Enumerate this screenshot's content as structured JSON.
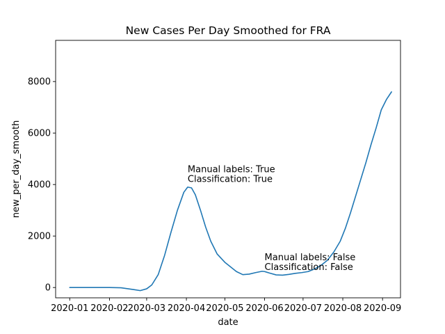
{
  "chart_data": {
    "type": "line",
    "title": "New Cases Per Day Smoothed for FRA",
    "xlabel": "date",
    "ylabel": "new_per_day_smooth",
    "xlim": [
      "2019-12-21",
      "2020-09-15"
    ],
    "ylim": [
      -400,
      9600
    ],
    "grid": false,
    "x_ticks": [
      "2020-01-01",
      "2020-02-01",
      "2020-03-01",
      "2020-04-01",
      "2020-05-01",
      "2020-06-01",
      "2020-07-01",
      "2020-08-01",
      "2020-09-01"
    ],
    "x_tick_labels": [
      "2020-01",
      "2020-02",
      "2020-03",
      "2020-04",
      "2020-05",
      "2020-06",
      "2020-07",
      "2020-08",
      "2020-09"
    ],
    "y_ticks": [
      0,
      2000,
      4000,
      6000,
      8000
    ],
    "y_tick_labels": [
      "0",
      "2000",
      "4000",
      "6000",
      "8000"
    ],
    "series": [
      {
        "color": "#1f77b4",
        "x": [
          "2020-01-01",
          "2020-01-15",
          "2020-02-01",
          "2020-02-10",
          "2020-02-20",
          "2020-02-25",
          "2020-03-01",
          "2020-03-05",
          "2020-03-10",
          "2020-03-15",
          "2020-03-20",
          "2020-03-25",
          "2020-03-30",
          "2020-04-02",
          "2020-04-05",
          "2020-04-08",
          "2020-04-12",
          "2020-04-16",
          "2020-04-20",
          "2020-04-25",
          "2020-05-01",
          "2020-05-05",
          "2020-05-10",
          "2020-05-15",
          "2020-05-20",
          "2020-05-25",
          "2020-05-30",
          "2020-06-01",
          "2020-06-05",
          "2020-06-10",
          "2020-06-15",
          "2020-06-20",
          "2020-06-25",
          "2020-06-30",
          "2020-07-05",
          "2020-07-10",
          "2020-07-15",
          "2020-07-20",
          "2020-07-25",
          "2020-07-30",
          "2020-08-03",
          "2020-08-07",
          "2020-08-11",
          "2020-08-15",
          "2020-08-19",
          "2020-08-23",
          "2020-08-27",
          "2020-08-31",
          "2020-09-04",
          "2020-09-08"
        ],
        "y": [
          0,
          0,
          0,
          -10,
          -80,
          -120,
          -50,
          100,
          500,
          1250,
          2150,
          3000,
          3700,
          3900,
          3870,
          3600,
          3000,
          2350,
          1800,
          1300,
          980,
          820,
          620,
          500,
          520,
          580,
          630,
          620,
          560,
          490,
          480,
          510,
          550,
          580,
          620,
          720,
          860,
          1060,
          1380,
          1800,
          2300,
          2900,
          3550,
          4200,
          4850,
          5550,
          6200,
          6900,
          7300,
          7600
        ]
      }
    ],
    "annotations": [
      {
        "x": "2020-04-02",
        "lines": [
          "Manual labels: True",
          "Classification: True"
        ],
        "y": 4100
      },
      {
        "x": "2020-06-01",
        "lines": [
          "Manual labels: False",
          "Classification: False"
        ],
        "y": 680
      }
    ]
  }
}
